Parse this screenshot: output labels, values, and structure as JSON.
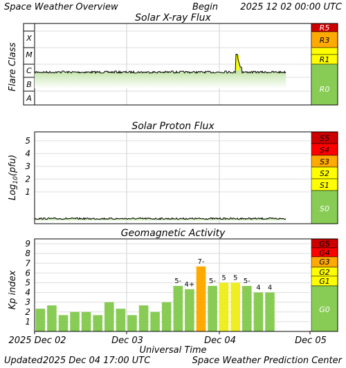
{
  "header": {
    "title": "Space Weather Overview",
    "begin_label": "Begin",
    "begin_date": "2025 12 02 00:00 UTC"
  },
  "footer": {
    "updated_label": "Updated",
    "updated_value": "2025 Dec 04 17:00 UTC",
    "center": "Space Weather Prediction Center"
  },
  "colors": {
    "green": "#88cc55",
    "yellow_band": "#ffff00",
    "yellow_bar": "#eeee22",
    "orange": "#ffaa00",
    "red": "#ff0000",
    "dark_red": "#cc0000",
    "x_grid": "#cccccc"
  },
  "chart_data": [
    {
      "id": "xray",
      "type": "area",
      "title": "Solar X-ray Flux",
      "ylabel": "Flare Class",
      "y_classes": [
        "X",
        "M",
        "C",
        "B",
        "A"
      ],
      "scale_labels": [
        "R5",
        "R3",
        "R1",
        "R0"
      ],
      "x_range_days": [
        0,
        3
      ],
      "data_end_day": 2.74,
      "baseline_class_level": "C",
      "flare_peaks": [
        {
          "day": 0.31,
          "level": "C3"
        },
        {
          "day": 0.62,
          "level": "C2"
        },
        {
          "day": 0.88,
          "level": "C3"
        },
        {
          "day": 1.18,
          "level": "C2"
        },
        {
          "day": 1.5,
          "level": "C3"
        },
        {
          "day": 1.8,
          "level": "C2"
        },
        {
          "day": 2.08,
          "level": "C3"
        },
        {
          "day": 2.2,
          "level": "M4"
        },
        {
          "day": 2.25,
          "level": "C6"
        }
      ]
    },
    {
      "id": "proton",
      "type": "area",
      "title": "Solar Proton Flux",
      "ylabel": "Log",
      "ylabel_sub": "10",
      "ylabel_unit": "(pfu)",
      "yticks": [
        "5",
        "4",
        "3",
        "2",
        "1"
      ],
      "scale_labels": [
        "S5",
        "S4",
        "S3",
        "S2",
        "S1",
        "S0"
      ],
      "ylim": [
        -1.5,
        5.7
      ],
      "x_range_days": [
        0,
        3
      ],
      "data_end_day": 2.74,
      "baseline_log_pfu": -1.1
    },
    {
      "id": "kp",
      "type": "bar",
      "title": "Geomagnetic Activity",
      "ylabel": "Kp index",
      "xlabel": "Universal Time",
      "yticks": [
        "1",
        "2",
        "3",
        "4",
        "5",
        "6",
        "7",
        "8",
        "9"
      ],
      "ylim": [
        0,
        9.5
      ],
      "scale_labels": [
        "G5",
        "G4",
        "G3",
        "G2",
        "G1",
        "G0"
      ],
      "x_ticks": [
        "2025 Dec 02",
        "Dec 03",
        "Dec 04",
        "Dec 05"
      ],
      "bar_hours": 3,
      "values": [
        2.33,
        2.67,
        1.67,
        2.0,
        2.0,
        1.67,
        3.0,
        2.33,
        1.67,
        2.67,
        2.0,
        3.0,
        4.67,
        4.33,
        6.67,
        4.67,
        5.0,
        5.0,
        4.67,
        4.0,
        4.0
      ],
      "bar_labels": [
        "",
        "",
        "",
        "",
        "",
        "",
        "",
        "",
        "",
        "",
        "",
        "",
        "5-",
        "4+",
        "7-",
        "5-",
        "5",
        "5",
        "5-",
        "4",
        "4"
      ]
    }
  ]
}
